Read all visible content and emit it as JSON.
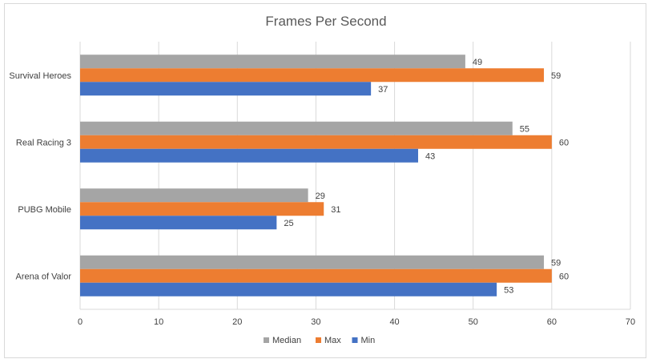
{
  "chart_data": {
    "type": "bar",
    "orientation": "horizontal",
    "title": "Frames Per Second",
    "categories": [
      "Arena of Valor",
      "PUBG Mobile",
      "Real Racing 3",
      "Survival Heroes"
    ],
    "series": [
      {
        "name": "Median",
        "color": "#a5a5a5",
        "values": [
          59,
          29,
          55,
          49
        ]
      },
      {
        "name": "Max",
        "color": "#ed7d31",
        "values": [
          60,
          31,
          60,
          59
        ]
      },
      {
        "name": "Min",
        "color": "#4472c4",
        "values": [
          53,
          25,
          43,
          37
        ]
      }
    ],
    "xlim": [
      0,
      70
    ],
    "xticks": [
      0,
      10,
      20,
      30,
      40,
      50,
      60,
      70
    ],
    "grid": true,
    "legend": "bottom",
    "data_labels": true
  }
}
